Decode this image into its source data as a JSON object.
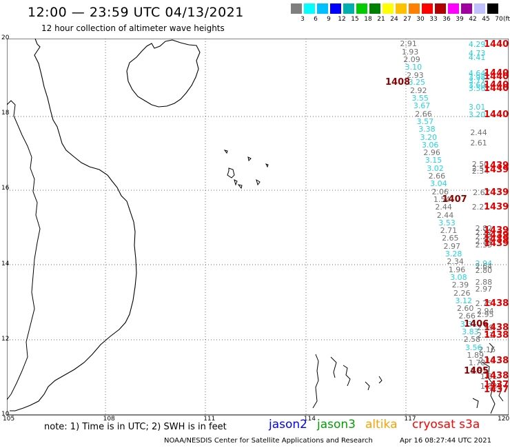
{
  "header": {
    "title": "12:00 — 23:59 UTC 04/13/2021",
    "subtitle": "12 hour collection of altimeter wave heights"
  },
  "colorbar": {
    "colors": [
      "#7f7f7f",
      "#00ffff",
      "#00bfff",
      "#0000ff",
      "#00b0b0",
      "#00cc00",
      "#008000",
      "#ffff00",
      "#ffc000",
      "#ff8000",
      "#ff0000",
      "#b00000",
      "#ff00ff",
      "#a000a0",
      "#c0c0ff",
      "#000000"
    ],
    "labels": [
      "3",
      "6",
      "9",
      "12",
      "15",
      "18",
      "21",
      "24",
      "27",
      "30",
      "33",
      "36",
      "39",
      "42",
      "45",
      "70"
    ],
    "unit": "(ft)"
  },
  "map": {
    "lon_ticks": [
      "105",
      "108",
      "111",
      "114",
      "117",
      "120"
    ],
    "lat_ticks": [
      "20",
      "18",
      "16",
      "14",
      "12",
      "10"
    ],
    "lon_range": [
      105,
      120
    ],
    "lat_range": [
      10,
      20
    ]
  },
  "observations": [
    {
      "lon": 117.0,
      "lat": 19.85,
      "v": "2.91",
      "c": "#707070"
    },
    {
      "lon": 117.05,
      "lat": 19.64,
      "v": "1.93",
      "c": "#707070"
    },
    {
      "lon": 117.1,
      "lat": 19.44,
      "v": "2.09",
      "c": "#707070"
    },
    {
      "lon": 117.15,
      "lat": 19.23,
      "v": "3.10",
      "c": "#22d4e0"
    },
    {
      "lon": 117.2,
      "lat": 19.02,
      "v": "2.93",
      "c": "#707070"
    },
    {
      "lon": 117.25,
      "lat": 18.82,
      "v": "3.25",
      "c": "#22d4e0"
    },
    {
      "lon": 117.3,
      "lat": 18.61,
      "v": "2.92",
      "c": "#707070"
    },
    {
      "lon": 117.35,
      "lat": 18.41,
      "v": "3.55",
      "c": "#22d4e0"
    },
    {
      "lon": 117.4,
      "lat": 18.2,
      "v": "3.67",
      "c": "#22d4e0"
    },
    {
      "lon": 117.45,
      "lat": 17.99,
      "v": "2.66",
      "c": "#707070"
    },
    {
      "lon": 117.5,
      "lat": 17.78,
      "v": "3.57",
      "c": "#22d4e0"
    },
    {
      "lon": 117.55,
      "lat": 17.58,
      "v": "3.38",
      "c": "#22d4e0"
    },
    {
      "lon": 117.6,
      "lat": 17.37,
      "v": "3.20",
      "c": "#22d4e0"
    },
    {
      "lon": 117.65,
      "lat": 17.16,
      "v": "3.06",
      "c": "#22d4e0"
    },
    {
      "lon": 117.7,
      "lat": 16.96,
      "v": "2.96",
      "c": "#707070"
    },
    {
      "lon": 117.75,
      "lat": 16.75,
      "v": "3.15",
      "c": "#22d4e0"
    },
    {
      "lon": 117.8,
      "lat": 16.54,
      "v": "3.02",
      "c": "#22d4e0"
    },
    {
      "lon": 117.85,
      "lat": 16.34,
      "v": "2.66",
      "c": "#707070"
    },
    {
      "lon": 117.9,
      "lat": 16.13,
      "v": "3.04",
      "c": "#22d4e0"
    },
    {
      "lon": 117.95,
      "lat": 15.92,
      "v": "2.06",
      "c": "#707070"
    },
    {
      "lon": 118.0,
      "lat": 15.72,
      "v": "1.54",
      "c": "#707070"
    },
    {
      "lon": 118.05,
      "lat": 15.51,
      "v": "2.44",
      "c": "#707070"
    },
    {
      "lon": 118.1,
      "lat": 15.3,
      "v": "2.44",
      "c": "#707070"
    },
    {
      "lon": 118.15,
      "lat": 15.09,
      "v": "3.53",
      "c": "#22d4e0"
    },
    {
      "lon": 118.2,
      "lat": 14.89,
      "v": "2.71",
      "c": "#707070"
    },
    {
      "lon": 118.25,
      "lat": 14.68,
      "v": "2.65",
      "c": "#707070"
    },
    {
      "lon": 118.3,
      "lat": 14.47,
      "v": "2.97",
      "c": "#707070"
    },
    {
      "lon": 118.35,
      "lat": 14.27,
      "v": "3.28",
      "c": "#22d4e0"
    },
    {
      "lon": 118.4,
      "lat": 14.06,
      "v": "2.34",
      "c": "#707070"
    },
    {
      "lon": 118.45,
      "lat": 13.85,
      "v": "1.96",
      "c": "#707070"
    },
    {
      "lon": 118.5,
      "lat": 13.65,
      "v": "3.08",
      "c": "#22d4e0"
    },
    {
      "lon": 118.55,
      "lat": 13.44,
      "v": "2.39",
      "c": "#707070"
    },
    {
      "lon": 118.6,
      "lat": 13.23,
      "v": "2.26",
      "c": "#707070"
    },
    {
      "lon": 118.65,
      "lat": 13.03,
      "v": "3.12",
      "c": "#22d4e0"
    },
    {
      "lon": 118.7,
      "lat": 12.82,
      "v": "2.60",
      "c": "#707070"
    },
    {
      "lon": 118.75,
      "lat": 12.61,
      "v": "2.66",
      "c": "#707070"
    },
    {
      "lon": 118.8,
      "lat": 12.4,
      "v": "3.31",
      "c": "#22d4e0"
    },
    {
      "lon": 118.85,
      "lat": 12.2,
      "v": "3.83",
      "c": "#22d4e0"
    },
    {
      "lon": 118.9,
      "lat": 11.99,
      "v": "2.58",
      "c": "#707070"
    },
    {
      "lon": 118.95,
      "lat": 11.78,
      "v": "3.56",
      "c": "#22d4e0"
    },
    {
      "lon": 119.0,
      "lat": 11.58,
      "v": "1.89",
      "c": "#707070"
    },
    {
      "lon": 119.05,
      "lat": 11.37,
      "v": "1.78",
      "c": "#707070"
    },
    {
      "lon": 119.1,
      "lat": 11.16,
      "v": "1.81",
      "c": "#707070"
    },
    {
      "lon": 119.05,
      "lat": 19.83,
      "v": "4.29",
      "c": "#22d4e0"
    },
    {
      "lon": 119.05,
      "lat": 19.6,
      "v": "4.73",
      "c": "#22d4e0"
    },
    {
      "lon": 119.05,
      "lat": 19.48,
      "v": "4.41",
      "c": "#22d4e0"
    },
    {
      "lon": 119.05,
      "lat": 19.06,
      "v": "4.64",
      "c": "#22d4e0"
    },
    {
      "lon": 119.05,
      "lat": 18.96,
      "v": "3.98",
      "c": "#22d4e0"
    },
    {
      "lon": 119.05,
      "lat": 18.86,
      "v": "3.77",
      "c": "#22d4e0"
    },
    {
      "lon": 119.05,
      "lat": 18.76,
      "v": "3.60",
      "c": "#22d4e0"
    },
    {
      "lon": 119.05,
      "lat": 18.66,
      "v": "3.56",
      "c": "#22d4e0"
    },
    {
      "lon": 119.05,
      "lat": 18.17,
      "v": "3.01",
      "c": "#22d4e0"
    },
    {
      "lon": 119.05,
      "lat": 17.96,
      "v": "3.20",
      "c": "#22d4e0"
    },
    {
      "lon": 119.1,
      "lat": 17.49,
      "v": "2.44",
      "c": "#707070"
    },
    {
      "lon": 119.1,
      "lat": 17.22,
      "v": "2.61",
      "c": "#707070"
    },
    {
      "lon": 119.15,
      "lat": 16.64,
      "v": "2.50",
      "c": "#707070"
    },
    {
      "lon": 119.15,
      "lat": 16.54,
      "v": "2.51",
      "c": "#707070"
    },
    {
      "lon": 119.15,
      "lat": 16.46,
      "v": "2.34",
      "c": "#707070"
    },
    {
      "lon": 119.18,
      "lat": 15.9,
      "v": "2.67",
      "c": "#707070"
    },
    {
      "lon": 119.15,
      "lat": 15.52,
      "v": "2.27",
      "c": "#707070"
    },
    {
      "lon": 119.25,
      "lat": 14.95,
      "v": "2.82",
      "c": "#707070"
    },
    {
      "lon": 119.25,
      "lat": 14.84,
      "v": "2.12",
      "c": "#707070"
    },
    {
      "lon": 119.25,
      "lat": 14.72,
      "v": "2.23",
      "c": "#707070"
    },
    {
      "lon": 119.25,
      "lat": 14.6,
      "v": "2.34",
      "c": "#707070"
    },
    {
      "lon": 119.25,
      "lat": 14.5,
      "v": "2.35",
      "c": "#707070"
    },
    {
      "lon": 119.25,
      "lat": 14.02,
      "v": "2.94",
      "c": "#22d4e0"
    },
    {
      "lon": 119.25,
      "lat": 13.93,
      "v": "2.64",
      "c": "#707070"
    },
    {
      "lon": 119.25,
      "lat": 13.82,
      "v": "2.80",
      "c": "#707070"
    },
    {
      "lon": 119.25,
      "lat": 13.52,
      "v": "2.88",
      "c": "#707070"
    },
    {
      "lon": 119.25,
      "lat": 13.34,
      "v": "2.97",
      "c": "#707070"
    },
    {
      "lon": 119.25,
      "lat": 12.95,
      "v": "2.75",
      "c": "#707070"
    },
    {
      "lon": 119.3,
      "lat": 12.74,
      "v": "2.94",
      "c": "#707070"
    },
    {
      "lon": 119.3,
      "lat": 12.66,
      "v": "2.95",
      "c": "#707070"
    },
    {
      "lon": 119.3,
      "lat": 12.3,
      "v": "2.99",
      "c": "#707070"
    },
    {
      "lon": 119.3,
      "lat": 12.1,
      "v": "2.31",
      "c": "#707070"
    },
    {
      "lon": 119.35,
      "lat": 11.72,
      "v": "2.16",
      "c": "#707070"
    },
    {
      "lon": 119.35,
      "lat": 11.42,
      "v": "2.15",
      "c": "#707070"
    },
    {
      "lon": 119.4,
      "lat": 11.0,
      "v": "1.81",
      "c": "#707070"
    },
    {
      "lon": 119.4,
      "lat": 10.75,
      "v": "1.53",
      "c": "#707070"
    }
  ],
  "times": [
    {
      "lon": 119.65,
      "lat": 19.83,
      "t": "1440",
      "c": "#e00000"
    },
    {
      "lon": 119.65,
      "lat": 19.06,
      "t": "1440",
      "c": "#e00000"
    },
    {
      "lon": 119.65,
      "lat": 18.98,
      "t": "1440",
      "c": "#e00000"
    },
    {
      "lon": 119.65,
      "lat": 18.76,
      "t": "1440",
      "c": "#e00000"
    },
    {
      "lon": 119.65,
      "lat": 18.66,
      "t": "1440",
      "c": "#e00000"
    },
    {
      "lon": 119.65,
      "lat": 17.96,
      "t": "1440",
      "c": "#e00000"
    },
    {
      "lon": 119.7,
      "lat": 16.61,
      "t": "1439",
      "c": "#e00000"
    },
    {
      "lon": 119.7,
      "lat": 16.5,
      "t": "1439",
      "c": "#e00000"
    },
    {
      "lon": 119.7,
      "lat": 15.9,
      "t": "1439",
      "c": "#e00000"
    },
    {
      "lon": 119.7,
      "lat": 15.52,
      "t": "1439",
      "c": "#e00000"
    },
    {
      "lon": 119.8,
      "lat": 14.89,
      "t": "1439",
      "c": "#e00000"
    },
    {
      "lon": 119.8,
      "lat": 14.77,
      "t": "1439",
      "c": "#e00000"
    },
    {
      "lon": 119.8,
      "lat": 14.66,
      "t": "1439",
      "c": "#e00000"
    },
    {
      "lon": 119.8,
      "lat": 14.55,
      "t": "1439",
      "c": "#e00000"
    },
    {
      "lon": 119.8,
      "lat": 12.95,
      "t": "1438",
      "c": "#e00000"
    },
    {
      "lon": 119.8,
      "lat": 12.3,
      "t": "1438",
      "c": "#e00000"
    },
    {
      "lon": 119.8,
      "lat": 12.1,
      "t": "1438",
      "c": "#e00000"
    },
    {
      "lon": 119.85,
      "lat": 11.42,
      "t": "1438",
      "c": "#e00000"
    },
    {
      "lon": 119.85,
      "lat": 11.02,
      "t": "1438",
      "c": "#e00000"
    },
    {
      "lon": 119.85,
      "lat": 10.78,
      "t": "1437",
      "c": "#e00000"
    },
    {
      "lon": 119.85,
      "lat": 10.66,
      "t": "1437",
      "c": "#e00000"
    },
    {
      "lon": 116.6,
      "lat": 18.82,
      "t": "1408",
      "c": "#900000"
    },
    {
      "lon": 118.3,
      "lat": 15.72,
      "t": "1407",
      "c": "#900000"
    },
    {
      "lon": 118.95,
      "lat": 12.4,
      "t": "1406",
      "c": "#900000"
    },
    {
      "lon": 118.95,
      "lat": 11.16,
      "t": "1405",
      "c": "#900000"
    }
  ],
  "footer": {
    "note": "note:  1) Time is in UTC;  2) SWH is in feet",
    "legend": [
      {
        "label": "jason2",
        "color": "#0000ff"
      },
      {
        "label": "jason3",
        "color": "#00a000"
      },
      {
        "label": "altika",
        "color": "#ffa000"
      },
      {
        "label": "cryosat s3a",
        "color": "#ff0000"
      }
    ],
    "credit": "NOAA/NESDIS Center for Satellite Applications and Research",
    "stamp": "Apr 16 08:27:44 UTC 2021"
  }
}
